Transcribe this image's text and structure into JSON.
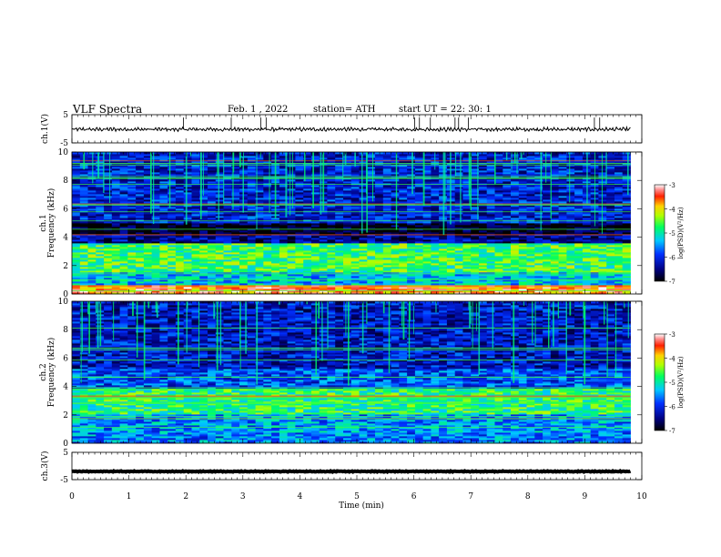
{
  "header": {
    "title": "VLF  Spectra",
    "date": "Feb. 1  , 2022",
    "station": "station= ATH",
    "start": "start  UT  =    22: 30: 1"
  },
  "chart_data": [
    {
      "type": "line",
      "name": "ch1-waveform",
      "ylabel": "ch.1(V)",
      "ylim": [
        -5,
        5
      ],
      "yticks": [
        "5",
        "-5"
      ],
      "xlim": [
        0,
        10
      ],
      "baseline": -0.2,
      "amplitude": 0.6
    },
    {
      "type": "heatmap",
      "name": "ch1-spectrogram",
      "ylabel_channel": "ch.1",
      "ylabel": "Frequency  (kHz)",
      "ylim": [
        0,
        10
      ],
      "yticks": [
        "0",
        "2",
        "4",
        "6",
        "8",
        "10"
      ],
      "xlim": [
        0,
        9.8
      ],
      "colorbar": {
        "label": "log(PSD)(V²/Hz)",
        "range": [
          -7,
          -3
        ],
        "ticks": [
          "-3",
          "-4",
          "-5",
          "-6",
          "-7"
        ]
      },
      "bands": [
        {
          "f": [
            0.0,
            0.6
          ],
          "level": -3.6
        },
        {
          "f": [
            0.6,
            1.5
          ],
          "level": -5.3
        },
        {
          "f": [
            1.5,
            3.6
          ],
          "level": -4.7
        },
        {
          "f": [
            3.6,
            4.2
          ],
          "level": -6.4
        },
        {
          "f": [
            4.2,
            5.0
          ],
          "level": -6.9
        },
        {
          "f": [
            5.0,
            10.0
          ],
          "level": -6.1
        }
      ]
    },
    {
      "type": "heatmap",
      "name": "ch2-spectrogram",
      "ylabel_channel": "ch.2",
      "ylabel": "Frequency  (kHz)",
      "ylim": [
        0,
        10
      ],
      "yticks": [
        "0",
        "2",
        "4",
        "6",
        "8",
        "10"
      ],
      "xlim": [
        0,
        9.8
      ],
      "colorbar": {
        "label": "log(PSD)(V²/Hz)",
        "range": [
          -7,
          -3
        ],
        "ticks": [
          "-3",
          "-4",
          "-5",
          "-6",
          "-7"
        ]
      },
      "bands": [
        {
          "f": [
            0.0,
            0.8
          ],
          "level": -5.6
        },
        {
          "f": [
            0.8,
            2.0
          ],
          "level": -5.5
        },
        {
          "f": [
            2.0,
            3.8
          ],
          "level": -4.8
        },
        {
          "f": [
            3.8,
            5.2
          ],
          "level": -5.8
        },
        {
          "f": [
            5.2,
            10.0
          ],
          "level": -6.2
        }
      ]
    },
    {
      "type": "line",
      "name": "ch3-waveform",
      "ylabel": "ch.3(V)",
      "ylim": [
        -5,
        5
      ],
      "yticks": [
        "5",
        "-5"
      ],
      "xlim": [
        0,
        10
      ],
      "baseline": -2.0,
      "amplitude": 0.15
    }
  ],
  "xaxis": {
    "label": "Time  (min)",
    "ticks": [
      "0",
      "1",
      "2",
      "3",
      "4",
      "5",
      "6",
      "7",
      "8",
      "9",
      "10"
    ],
    "range": [
      0,
      10
    ]
  }
}
